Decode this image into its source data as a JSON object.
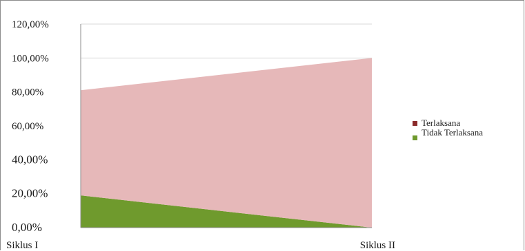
{
  "chart_data": {
    "type": "area",
    "stacked": true,
    "categories": [
      "Siklus I",
      "Siklus II"
    ],
    "series": [
      {
        "name": "Tidak Terlaksana",
        "values": [
          19.0,
          0.0
        ],
        "color": "#6f9a2d"
      },
      {
        "name": "Terlaksana",
        "values": [
          62.0,
          100.0
        ],
        "color": "#e6b8b9"
      }
    ],
    "legend_order": [
      "Terlaksana",
      "Tidak Terlaksana"
    ],
    "legend_colors": [
      "#8b2a2a",
      "#6f9a2d"
    ],
    "ylim": [
      0,
      120
    ],
    "yticks": [
      "0,00%",
      "20,00%",
      "40,00%",
      "60,00%",
      "80,00%",
      "100,00%",
      "120,00%"
    ],
    "grid": true,
    "legend_position": "right",
    "title": "",
    "xlabel": "",
    "ylabel": ""
  }
}
